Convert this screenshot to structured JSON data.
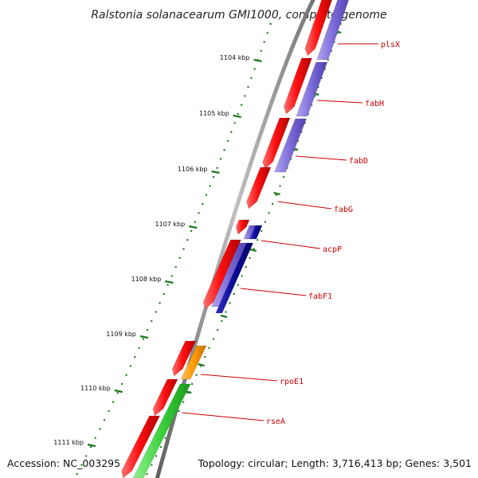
{
  "title": "Ralstonia solanacearum GMI1000, complete genome",
  "accession": "Accession: NC_003295",
  "topology": "Topology: circular; Length: 3,716,413 bp; Genes: 3,501",
  "ticks": [
    "1104 kbp",
    "1105 kbp",
    "1106 kbp",
    "1107 kbp",
    "1108 kbp",
    "1109 kbp",
    "1110 kbp",
    "1111 kbp"
  ],
  "genes": [
    "plsX",
    "fabH",
    "fabD",
    "fabG",
    "acpP",
    "fabF1",
    "rpoE1",
    "rseA"
  ],
  "colors": {
    "cds_red": "#ff1a1a",
    "blue": "#7a6ad8",
    "dark_blue": "#0a0a99",
    "orange": "#ff9a00",
    "green": "#3ad03a",
    "tick_green": "#1e7a1e",
    "label_red": "#cc0000"
  }
}
